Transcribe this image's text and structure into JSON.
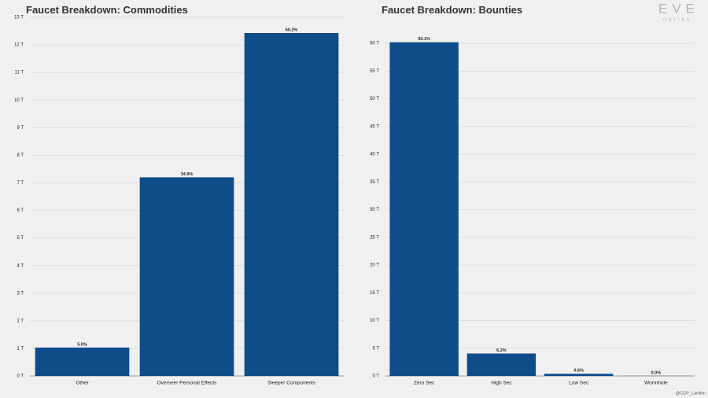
{
  "chart_data": [
    {
      "type": "bar",
      "title": "Faucet Breakdown: Commodities",
      "categories": [
        "Other",
        "Overseer Personal Effects",
        "Sleeper Components"
      ],
      "values": [
        1.03,
        7.2,
        12.43
      ],
      "percent_labels": [
        "5.0%",
        "34.9%",
        "60.2%"
      ],
      "color": "#0f4c8a",
      "ylim": [
        0,
        13
      ],
      "yticks": [
        {
          "value": 0,
          "label": "0 T"
        },
        {
          "value": 1,
          "label": "1 T"
        },
        {
          "value": 2,
          "label": "2 T"
        },
        {
          "value": 3,
          "label": "3 T"
        },
        {
          "value": 4,
          "label": "4 T"
        },
        {
          "value": 5,
          "label": "5 T"
        },
        {
          "value": 6,
          "label": "6 T"
        },
        {
          "value": 7,
          "label": "7 T"
        },
        {
          "value": 8,
          "label": "8 T"
        },
        {
          "value": 9,
          "label": "9 T"
        },
        {
          "value": 10,
          "label": "10 T"
        },
        {
          "value": 11,
          "label": "11 T"
        },
        {
          "value": 12,
          "label": "12 T"
        },
        {
          "value": 13,
          "label": "13 T"
        }
      ],
      "grid": true
    },
    {
      "type": "bar",
      "title": "Faucet Breakdown: Bounties",
      "categories": [
        "Zero Sec",
        "High Sec",
        "Low Sec",
        "Wormhole"
      ],
      "values": [
        60.2,
        4.05,
        0.4,
        0.02
      ],
      "percent_labels": [
        "93.1%",
        "6.3%",
        "0.6%",
        "0.0%"
      ],
      "color": "#0f4c8a",
      "ylim": [
        0,
        64.7
      ],
      "yticks": [
        {
          "value": 0,
          "label": "0 T"
        },
        {
          "value": 5,
          "label": "5 T"
        },
        {
          "value": 10,
          "label": "10 T"
        },
        {
          "value": 15,
          "label": "15 T"
        },
        {
          "value": 20,
          "label": "20 T"
        },
        {
          "value": 25,
          "label": "25 T"
        },
        {
          "value": 30,
          "label": "30 T"
        },
        {
          "value": 35,
          "label": "35 T"
        },
        {
          "value": 40,
          "label": "40 T"
        },
        {
          "value": 45,
          "label": "45 T"
        },
        {
          "value": 50,
          "label": "50 T"
        },
        {
          "value": 55,
          "label": "55 T"
        },
        {
          "value": 60,
          "label": "60 T"
        }
      ],
      "grid": true
    }
  ],
  "branding": {
    "logo": "EVE",
    "logo_sub": "ONLINE",
    "credit": "@CCP_Larrikin"
  }
}
